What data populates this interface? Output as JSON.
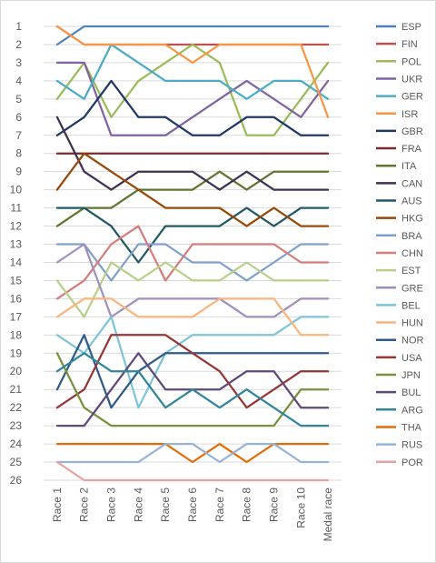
{
  "chart_data": {
    "type": "line",
    "title": "",
    "xlabel": "",
    "ylabel": "",
    "x": [
      "Race 1",
      "Race 2",
      "Race 3",
      "Race 4",
      "Race 5",
      "Race 6",
      "Race 7",
      "Race 8",
      "Race 9",
      "Race 10",
      "Medal race"
    ],
    "y_ticks": [
      "1",
      "2",
      "3",
      "4",
      "5",
      "6",
      "7",
      "8",
      "9",
      "10",
      "11",
      "12",
      "13",
      "14",
      "15",
      "16",
      "17",
      "18",
      "19",
      "20",
      "21",
      "22",
      "23",
      "24",
      "25",
      "26"
    ],
    "ylim": [
      1,
      26
    ],
    "y_reversed": true,
    "grid": "horizontal",
    "legend_position": "right",
    "series": [
      {
        "name": "ESP",
        "color": "#4f81bd",
        "values": [
          2,
          1,
          1,
          1,
          1,
          1,
          1,
          1,
          1,
          1,
          1
        ]
      },
      {
        "name": "FIN",
        "color": "#c0504d",
        "values": [
          1,
          2,
          2,
          2,
          2,
          2,
          2,
          2,
          2,
          2,
          2
        ]
      },
      {
        "name": "POL",
        "color": "#9bbb59",
        "values": [
          5,
          3,
          6,
          4,
          3,
          2,
          3,
          7,
          7,
          5,
          3
        ]
      },
      {
        "name": "UKR",
        "color": "#8064a2",
        "values": [
          3,
          3,
          7,
          7,
          7,
          6,
          5,
          4,
          5,
          6,
          4
        ]
      },
      {
        "name": "GER",
        "color": "#4bacc6",
        "values": [
          4,
          5,
          2,
          3,
          4,
          4,
          4,
          5,
          4,
          4,
          5
        ]
      },
      {
        "name": "ISR",
        "color": "#f79646",
        "values": [
          1,
          2,
          2,
          2,
          2,
          3,
          2,
          2,
          2,
          2,
          6
        ]
      },
      {
        "name": "GBR",
        "color": "#1f3864",
        "values": [
          7,
          6,
          4,
          6,
          6,
          7,
          7,
          6,
          6,
          7,
          7
        ]
      },
      {
        "name": "FRA",
        "color": "#772c2a",
        "values": [
          8,
          8,
          8,
          8,
          8,
          8,
          8,
          8,
          8,
          8,
          8
        ]
      },
      {
        "name": "ITA",
        "color": "#5f7530",
        "values": [
          12,
          11,
          11,
          10,
          10,
          10,
          9,
          10,
          9,
          9,
          9
        ]
      },
      {
        "name": "CAN",
        "color": "#3f3151",
        "values": [
          6,
          9,
          10,
          9,
          9,
          9,
          10,
          9,
          10,
          10,
          10
        ]
      },
      {
        "name": "AUS",
        "color": "#215968",
        "values": [
          11,
          11,
          12,
          14,
          12,
          12,
          12,
          11,
          12,
          11,
          11
        ]
      },
      {
        "name": "HKG",
        "color": "#984807",
        "values": [
          10,
          8,
          9,
          10,
          11,
          11,
          11,
          12,
          11,
          12,
          12
        ]
      },
      {
        "name": "BRA",
        "color": "#7f9fcd",
        "values": [
          13,
          13,
          15,
          13,
          13,
          14,
          14,
          15,
          14,
          13,
          13
        ]
      },
      {
        "name": "CHN",
        "color": "#d47d7b",
        "values": [
          16,
          15,
          13,
          12,
          15,
          13,
          13,
          13,
          13,
          14,
          14
        ]
      },
      {
        "name": "EST",
        "color": "#b8cf8a",
        "values": [
          15,
          17,
          14,
          15,
          14,
          15,
          15,
          14,
          15,
          15,
          15
        ]
      },
      {
        "name": "GRE",
        "color": "#a18fbc",
        "values": [
          14,
          13,
          17,
          16,
          16,
          16,
          16,
          17,
          17,
          16,
          16
        ]
      },
      {
        "name": "BEL",
        "color": "#7ec4d8",
        "values": [
          18,
          19,
          17,
          22,
          19,
          18,
          18,
          18,
          18,
          17,
          17
        ]
      },
      {
        "name": "HUN",
        "color": "#f9b57c",
        "values": [
          17,
          16,
          16,
          17,
          17,
          17,
          16,
          16,
          16,
          18,
          18
        ]
      },
      {
        "name": "NOR",
        "color": "#2e5a8c",
        "values": [
          21,
          18,
          22,
          20,
          19,
          19,
          19,
          19,
          19,
          19,
          19
        ]
      },
      {
        "name": "USA",
        "color": "#963634",
        "values": [
          22,
          21,
          18,
          18,
          18,
          19,
          20,
          22,
          21,
          20,
          20
        ]
      },
      {
        "name": "JPN",
        "color": "#76923c",
        "values": [
          19,
          22,
          23,
          23,
          23,
          23,
          23,
          23,
          23,
          21,
          21
        ]
      },
      {
        "name": "BUL",
        "color": "#5f497a",
        "values": [
          23,
          23,
          21,
          19,
          21,
          21,
          21,
          20,
          20,
          22,
          22
        ]
      },
      {
        "name": "ARG",
        "color": "#31859c",
        "values": [
          20,
          19,
          20,
          20,
          22,
          21,
          22,
          21,
          22,
          23,
          23
        ]
      },
      {
        "name": "THA",
        "color": "#e36c09",
        "values": [
          24,
          24,
          24,
          24,
          24,
          25,
          24,
          25,
          24,
          24,
          24
        ]
      },
      {
        "name": "RUS",
        "color": "#95b3d7",
        "values": [
          25,
          25,
          25,
          25,
          24,
          24,
          25,
          24,
          24,
          25,
          25
        ]
      },
      {
        "name": "POR",
        "color": "#e6a2a0",
        "values": [
          25,
          26,
          26,
          26,
          26,
          26,
          26,
          26,
          26,
          26,
          26
        ]
      }
    ]
  }
}
